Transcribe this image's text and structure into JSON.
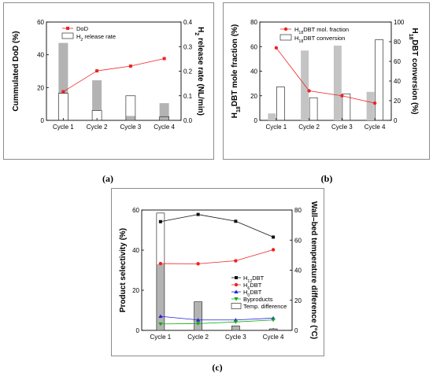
{
  "chart_data": [
    {
      "id": "a",
      "type": "bar+line",
      "categories": [
        "Cycle 1",
        "Cycle 2",
        "Cycle 3",
        "Cycle 4"
      ],
      "ylabel_left": "Cummulated DoD (%)",
      "ylabel_right_parts": [
        [
          "H",
          "",
          false
        ],
        [
          "2",
          "sub",
          false
        ],
        [
          " release rate (NL/min)",
          "",
          false
        ]
      ],
      "ylim_left": [
        0,
        60
      ],
      "yticks_left": [
        0,
        20,
        40,
        60
      ],
      "ylim_right": [
        0,
        0.4
      ],
      "yticks_right": [
        "0.0",
        "0.1",
        "0.2",
        "0.3",
        "0.4"
      ],
      "bars": [
        {
          "gray_bottom": 0.11,
          "gray_top": 0.315,
          "outline_top": 0.11
        },
        {
          "gray_bottom": 0.04,
          "gray_top": 0.163,
          "outline_top": 0.04
        },
        {
          "gray_bottom": 0.0,
          "gray_top": 0.018,
          "outline_top": 0.1
        },
        {
          "gray_bottom": 0.0,
          "gray_top": 0.07,
          "outline_top": 0.015
        }
      ],
      "line": {
        "values": [
          17.5,
          30.2,
          33.1,
          37.7
        ],
        "color": "#ee2222",
        "marker": "square"
      },
      "legend": [
        {
          "kind": "line",
          "parts": [
            [
              "DoD",
              "",
              false
            ]
          ]
        },
        {
          "kind": "bar",
          "parts": [
            [
              "H",
              "",
              false
            ],
            [
              "2",
              "sub",
              false
            ],
            [
              " release rate",
              "",
              false
            ]
          ]
        }
      ]
    },
    {
      "id": "b",
      "type": "bar+line",
      "categories": [
        "Cycle 1",
        "Cycle 2",
        "Cycle 3",
        "Cycle 4"
      ],
      "ylabel_left_parts": [
        [
          "H",
          "",
          false
        ],
        [
          "18",
          "sub",
          false
        ],
        [
          "DBT mole fraction (%)",
          "",
          false
        ]
      ],
      "ylabel_right_parts": [
        [
          "H",
          "",
          false
        ],
        [
          "18",
          "sub",
          false
        ],
        [
          "DBT conversion (%)",
          "",
          false
        ]
      ],
      "ylim_left": [
        0,
        80
      ],
      "yticks_left": [
        0,
        20,
        40,
        60,
        80
      ],
      "ylim_right": [
        0,
        100
      ],
      "yticks_right": [
        0,
        20,
        40,
        60,
        80,
        100
      ],
      "bars": [
        {
          "gray": 7,
          "outline": 34
        },
        {
          "gray": 71,
          "outline": 23
        },
        {
          "gray": 76,
          "outline": 27
        },
        {
          "gray": 29,
          "outline": 82
        }
      ],
      "line": {
        "values": [
          59,
          24,
          20,
          14
        ],
        "color": "#ee2222",
        "marker": "circle"
      },
      "legend": [
        {
          "kind": "line",
          "parts": [
            [
              "H",
              "",
              false
            ],
            [
              "18",
              "sub",
              false
            ],
            [
              "DBT mol. fraction",
              "",
              false
            ]
          ]
        },
        {
          "kind": "bar",
          "parts": [
            [
              "H",
              "",
              false
            ],
            [
              "18",
              "sub",
              false
            ],
            [
              "DBT conversion",
              "",
              false
            ]
          ]
        }
      ]
    },
    {
      "id": "c",
      "type": "bar+line",
      "categories": [
        "Cycle 1",
        "Cycle 2",
        "Cycle 3",
        "Cycle 4"
      ],
      "ylabel_left": "Product selectivity (%)",
      "ylabel_right": "Wall–bed temperature difference (°C)",
      "ylim_left": [
        0,
        60
      ],
      "yticks_left": [
        0,
        20,
        40,
        60
      ],
      "ylim_right": [
        0,
        80
      ],
      "yticks_right": [
        0,
        20,
        40,
        60,
        80
      ],
      "bars": [
        {
          "gray": 44,
          "outline": 78
        },
        {
          "gray": 19,
          "outline": 19
        },
        {
          "gray": 3,
          "outline": 3
        },
        {
          "gray": 1,
          "outline": 1
        }
      ],
      "series": [
        {
          "parts": [
            [
              "H",
              "",
              false
            ],
            [
              "12",
              "sub",
              false
            ],
            [
              "DBT",
              "",
              false
            ]
          ],
          "values": [
            54.2,
            57.8,
            54.4,
            46.5
          ],
          "color": "#111111",
          "marker": "square"
        },
        {
          "parts": [
            [
              "H",
              "",
              false
            ],
            [
              "6",
              "sub",
              false
            ],
            [
              "DBT",
              "",
              false
            ]
          ],
          "values": [
            33.3,
            33.2,
            34.7,
            40.2
          ],
          "color": "#ee2222",
          "marker": "circle"
        },
        {
          "parts": [
            [
              "H",
              "",
              false
            ],
            [
              "0",
              "sub",
              false
            ],
            [
              "DBT",
              "",
              false
            ]
          ],
          "values": [
            7.0,
            5.2,
            5.2,
            6.1
          ],
          "color": "#2222dd",
          "marker": "triangle"
        },
        {
          "parts": [
            [
              "Byproducts",
              "",
              false
            ]
          ],
          "values": [
            3.2,
            3.4,
            4.2,
            5.2
          ],
          "color": "#11aa11",
          "marker": "triangle-down"
        }
      ],
      "legend_bar": {
        "parts": [
          [
            "Temp. difference",
            "",
            false
          ]
        ]
      }
    }
  ],
  "captions": {
    "a": "(a)",
    "b": "(b)",
    "c": "(c)"
  }
}
